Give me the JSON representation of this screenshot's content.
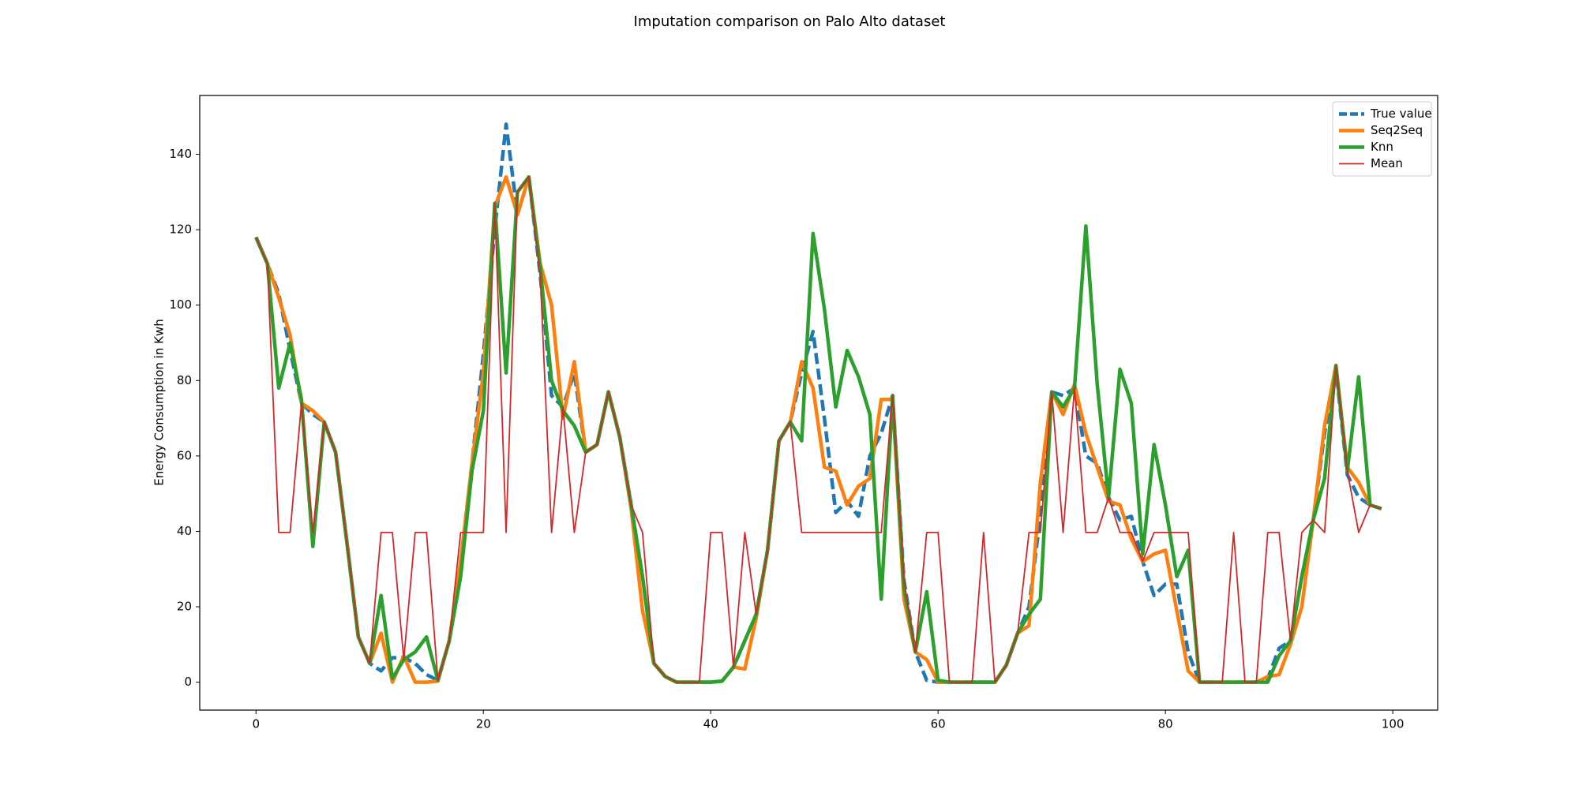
{
  "chart_data": {
    "type": "line",
    "title": "Imputation comparison on Palo Alto dataset",
    "y_label": "Energy Consumption in Kwh",
    "x": [
      0,
      1,
      2,
      3,
      4,
      5,
      6,
      7,
      8,
      9,
      10,
      11,
      12,
      13,
      14,
      15,
      16,
      17,
      18,
      19,
      20,
      21,
      22,
      23,
      24,
      25,
      26,
      27,
      28,
      29,
      30,
      31,
      32,
      33,
      34,
      35,
      36,
      37,
      38,
      39,
      40,
      41,
      42,
      43,
      44,
      45,
      46,
      47,
      48,
      49,
      50,
      51,
      52,
      53,
      54,
      55,
      56,
      57,
      58,
      59,
      60,
      61,
      62,
      63,
      64,
      65,
      66,
      67,
      68,
      69,
      70,
      71,
      72,
      73,
      74,
      75,
      76,
      77,
      78,
      79,
      80,
      81,
      82,
      83,
      84,
      85,
      86,
      87,
      88,
      89,
      90,
      91,
      92,
      93,
      94,
      95,
      96,
      97,
      98,
      99
    ],
    "series": [
      {
        "name": "True value",
        "color": "#1f77b4",
        "linestyle": "dashed",
        "values": [
          118,
          111,
          103,
          88,
          74,
          71,
          69,
          61,
          37,
          12,
          5,
          3,
          6.5,
          6.5,
          5,
          2,
          0.5,
          11,
          32,
          58,
          87,
          120,
          148,
          124,
          134,
          108,
          76,
          73,
          82,
          61,
          63,
          77,
          65,
          47,
          28,
          5,
          1.5,
          0,
          0,
          0,
          0,
          0.3,
          4,
          11,
          18,
          35,
          64,
          69,
          82,
          93,
          70,
          45,
          48,
          44,
          60,
          66,
          76,
          27,
          8,
          0.5,
          0,
          0,
          0,
          0,
          0,
          0,
          4.5,
          13,
          20,
          44,
          77,
          76,
          78,
          60,
          58,
          49,
          43,
          44,
          32,
          23,
          26,
          26,
          8,
          0,
          0,
          0,
          0,
          0,
          0,
          1,
          9,
          11,
          28,
          43,
          66,
          83,
          55,
          49,
          47,
          46
        ]
      },
      {
        "name": "Seq2Seq",
        "color": "#ff7f0e",
        "linestyle": "solid",
        "values": [
          118,
          111,
          102,
          92,
          74,
          72,
          69,
          61,
          37,
          12,
          5,
          13,
          0,
          7,
          0,
          0,
          0.3,
          11,
          32,
          58,
          82,
          126,
          134,
          124,
          134,
          111,
          100,
          70,
          85,
          61,
          63,
          77,
          65,
          46,
          19,
          5,
          1.5,
          0,
          0,
          0,
          0,
          0.3,
          4,
          3.5,
          17,
          35,
          64,
          69,
          85,
          78,
          57,
          56,
          47,
          52,
          54,
          75,
          75,
          22,
          8,
          6,
          0,
          0,
          0,
          0,
          0,
          0,
          4.5,
          13,
          15,
          53,
          77,
          71,
          79,
          66,
          57,
          48,
          47,
          38,
          32,
          34,
          35,
          19,
          3,
          0,
          0,
          0,
          0,
          0,
          0,
          1.5,
          2,
          10,
          20,
          43,
          68,
          84,
          57,
          53,
          47,
          46
        ]
      },
      {
        "name": "Knn",
        "color": "#2ca02c",
        "linestyle": "solid",
        "values": [
          118,
          111,
          78,
          90,
          75,
          36,
          69,
          61,
          37,
          12,
          5,
          23,
          1,
          6,
          8,
          12,
          0.5,
          11,
          28,
          56,
          72,
          127,
          82,
          130,
          134,
          110,
          80,
          72,
          68,
          61,
          63,
          77,
          65,
          47,
          28,
          5,
          1.5,
          0,
          0,
          0,
          0,
          0.3,
          4,
          11,
          18,
          35,
          64,
          69,
          64,
          119,
          99,
          73,
          88,
          81,
          71,
          22,
          76,
          25,
          8,
          24,
          0.5,
          0,
          0,
          0,
          0,
          0,
          4.5,
          13,
          18,
          22,
          77,
          73,
          78,
          121,
          79,
          49,
          83,
          74,
          34,
          63,
          47,
          28,
          35,
          0,
          0,
          0,
          0,
          0,
          0,
          0,
          7,
          11,
          28,
          43,
          54,
          84,
          56,
          81,
          47,
          46
        ]
      },
      {
        "name": "Mean",
        "color": "#d62728",
        "linestyle": "thin",
        "values": [
          118,
          111,
          39.7,
          39.7,
          74,
          39.7,
          69,
          61,
          37,
          12,
          5,
          39.7,
          39.7,
          6,
          39.7,
          39.7,
          0.5,
          11,
          39.7,
          39.7,
          39.7,
          127,
          39.7,
          130,
          134,
          108,
          39.7,
          73,
          39.7,
          61,
          63,
          77,
          65,
          47,
          39.7,
          5,
          1.5,
          0,
          0,
          0,
          39.7,
          39.7,
          4,
          39.7,
          18,
          35,
          64,
          69,
          39.7,
          39.7,
          39.7,
          39.7,
          39.7,
          39.7,
          39.7,
          39.7,
          76,
          27,
          8,
          39.7,
          39.7,
          0,
          0,
          0,
          39.7,
          0,
          4.5,
          13,
          39.7,
          39.7,
          77,
          39.7,
          78,
          39.7,
          39.7,
          49,
          39.7,
          39.7,
          32,
          39.7,
          39.7,
          39.7,
          39.7,
          0,
          0,
          0,
          39.7,
          0,
          0,
          39.7,
          39.7,
          11,
          39.7,
          43,
          39.7,
          84,
          56,
          39.7,
          47,
          46
        ]
      }
    ],
    "xlim": [
      -4.95,
      103.95
    ],
    "xticks": [
      0,
      20,
      40,
      60,
      80,
      100
    ],
    "ylim": [
      -7.4,
      155.6
    ],
    "yticks": [
      0,
      20,
      40,
      60,
      80,
      100,
      120,
      140
    ],
    "grid": false,
    "legend": "upper right"
  }
}
